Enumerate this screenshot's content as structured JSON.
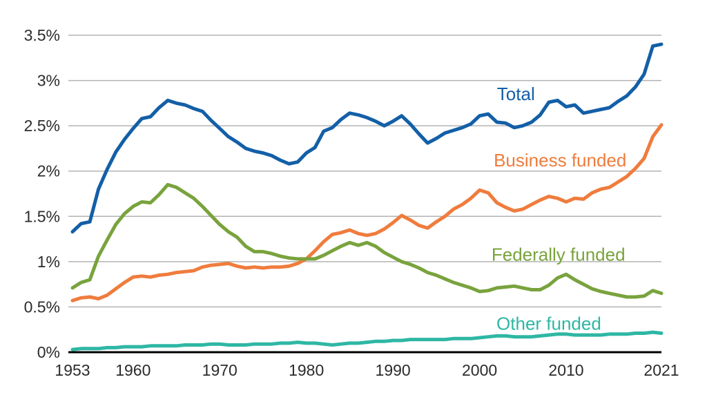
{
  "chart_data": {
    "type": "line",
    "title": "",
    "xlabel": "",
    "ylabel": "",
    "ylim": [
      0,
      3.5
    ],
    "xlim": [
      1953,
      2021
    ],
    "grid": true,
    "legend_position": "inline-labels-on-plot",
    "axis_color": "#000000",
    "gridline_color": "#b3b3b3",
    "tick_text_color": "#2b2b2b",
    "yticks": [
      {
        "value": 0,
        "label": "0%"
      },
      {
        "value": 0.5,
        "label": "0.5%"
      },
      {
        "value": 1,
        "label": "1%"
      },
      {
        "value": 1.5,
        "label": "1.5%"
      },
      {
        "value": 2,
        "label": "2%"
      },
      {
        "value": 2.5,
        "label": "2.5%"
      },
      {
        "value": 3,
        "label": "3%"
      },
      {
        "value": 3.5,
        "label": "3.5%"
      }
    ],
    "xticks": [
      {
        "value": 1953,
        "label": "1953"
      },
      {
        "value": 1960,
        "label": "1960"
      },
      {
        "value": 1970,
        "label": "1970"
      },
      {
        "value": 1980,
        "label": "1980"
      },
      {
        "value": 1990,
        "label": "1990"
      },
      {
        "value": 2000,
        "label": "2000"
      },
      {
        "value": 2010,
        "label": "2010"
      },
      {
        "value": 2021,
        "label": "2021"
      }
    ],
    "x": [
      1953,
      1954,
      1955,
      1956,
      1957,
      1958,
      1959,
      1960,
      1961,
      1962,
      1963,
      1964,
      1965,
      1966,
      1967,
      1968,
      1969,
      1970,
      1971,
      1972,
      1973,
      1974,
      1975,
      1976,
      1977,
      1978,
      1979,
      1980,
      1981,
      1982,
      1983,
      1984,
      1985,
      1986,
      1987,
      1988,
      1989,
      1990,
      1991,
      1992,
      1993,
      1994,
      1995,
      1996,
      1997,
      1998,
      1999,
      2000,
      2001,
      2002,
      2003,
      2004,
      2005,
      2006,
      2007,
      2008,
      2009,
      2010,
      2011,
      2012,
      2013,
      2014,
      2015,
      2016,
      2017,
      2018,
      2019,
      2020,
      2021
    ],
    "series": [
      {
        "name": "Total",
        "color": "#135fa7",
        "values": [
          1.33,
          1.42,
          1.44,
          1.8,
          2.02,
          2.21,
          2.35,
          2.47,
          2.58,
          2.6,
          2.7,
          2.78,
          2.75,
          2.73,
          2.69,
          2.66,
          2.56,
          2.47,
          2.38,
          2.32,
          2.25,
          2.22,
          2.2,
          2.17,
          2.12,
          2.08,
          2.1,
          2.2,
          2.26,
          2.44,
          2.48,
          2.57,
          2.64,
          2.62,
          2.59,
          2.55,
          2.5,
          2.55,
          2.61,
          2.52,
          2.41,
          2.31,
          2.36,
          2.42,
          2.45,
          2.48,
          2.52,
          2.61,
          2.63,
          2.54,
          2.53,
          2.48,
          2.5,
          2.54,
          2.62,
          2.76,
          2.78,
          2.71,
          2.73,
          2.64,
          2.66,
          2.68,
          2.7,
          2.77,
          2.83,
          2.93,
          3.07,
          3.38,
          3.4
        ]
      },
      {
        "name": "Business funded",
        "color": "#ef7c3d",
        "values": [
          0.57,
          0.6,
          0.61,
          0.59,
          0.63,
          0.7,
          0.77,
          0.83,
          0.84,
          0.83,
          0.85,
          0.86,
          0.88,
          0.89,
          0.9,
          0.94,
          0.96,
          0.97,
          0.98,
          0.95,
          0.93,
          0.94,
          0.93,
          0.94,
          0.94,
          0.95,
          0.98,
          1.03,
          1.12,
          1.22,
          1.3,
          1.32,
          1.35,
          1.31,
          1.29,
          1.31,
          1.36,
          1.43,
          1.51,
          1.46,
          1.4,
          1.37,
          1.44,
          1.5,
          1.58,
          1.63,
          1.7,
          1.79,
          1.76,
          1.65,
          1.6,
          1.56,
          1.58,
          1.63,
          1.68,
          1.72,
          1.7,
          1.66,
          1.7,
          1.69,
          1.76,
          1.8,
          1.82,
          1.88,
          1.94,
          2.03,
          2.14,
          2.38,
          2.51
        ]
      },
      {
        "name": "Federally funded",
        "color": "#79a33d",
        "values": [
          0.71,
          0.77,
          0.8,
          1.06,
          1.24,
          1.41,
          1.53,
          1.61,
          1.66,
          1.65,
          1.74,
          1.85,
          1.82,
          1.76,
          1.7,
          1.61,
          1.51,
          1.41,
          1.33,
          1.27,
          1.17,
          1.11,
          1.11,
          1.09,
          1.06,
          1.04,
          1.03,
          1.03,
          1.03,
          1.07,
          1.12,
          1.17,
          1.21,
          1.18,
          1.21,
          1.17,
          1.1,
          1.05,
          1.0,
          0.97,
          0.93,
          0.88,
          0.85,
          0.81,
          0.77,
          0.74,
          0.71,
          0.67,
          0.68,
          0.71,
          0.72,
          0.73,
          0.71,
          0.69,
          0.69,
          0.74,
          0.82,
          0.86,
          0.8,
          0.75,
          0.7,
          0.67,
          0.65,
          0.63,
          0.61,
          0.61,
          0.62,
          0.68,
          0.65
        ]
      },
      {
        "name": "Other funded",
        "color": "#2eb7a4",
        "values": [
          0.03,
          0.04,
          0.04,
          0.04,
          0.05,
          0.05,
          0.06,
          0.06,
          0.06,
          0.07,
          0.07,
          0.07,
          0.07,
          0.08,
          0.08,
          0.08,
          0.09,
          0.09,
          0.08,
          0.08,
          0.08,
          0.09,
          0.09,
          0.09,
          0.1,
          0.1,
          0.11,
          0.1,
          0.1,
          0.09,
          0.08,
          0.09,
          0.1,
          0.1,
          0.11,
          0.12,
          0.12,
          0.13,
          0.13,
          0.14,
          0.14,
          0.14,
          0.14,
          0.14,
          0.15,
          0.15,
          0.15,
          0.16,
          0.17,
          0.18,
          0.18,
          0.17,
          0.17,
          0.17,
          0.18,
          0.19,
          0.2,
          0.2,
          0.19,
          0.19,
          0.19,
          0.19,
          0.2,
          0.2,
          0.2,
          0.21,
          0.21,
          0.22,
          0.21
        ]
      }
    ],
    "annotations": [
      {
        "series_index": 0,
        "year": 2004.2,
        "value": 2.85
      },
      {
        "series_index": 1,
        "year": 2009.3,
        "value": 2.12
      },
      {
        "series_index": 2,
        "year": 2009.1,
        "value": 1.08
      },
      {
        "series_index": 3,
        "year": 2008.0,
        "value": 0.315
      }
    ]
  }
}
